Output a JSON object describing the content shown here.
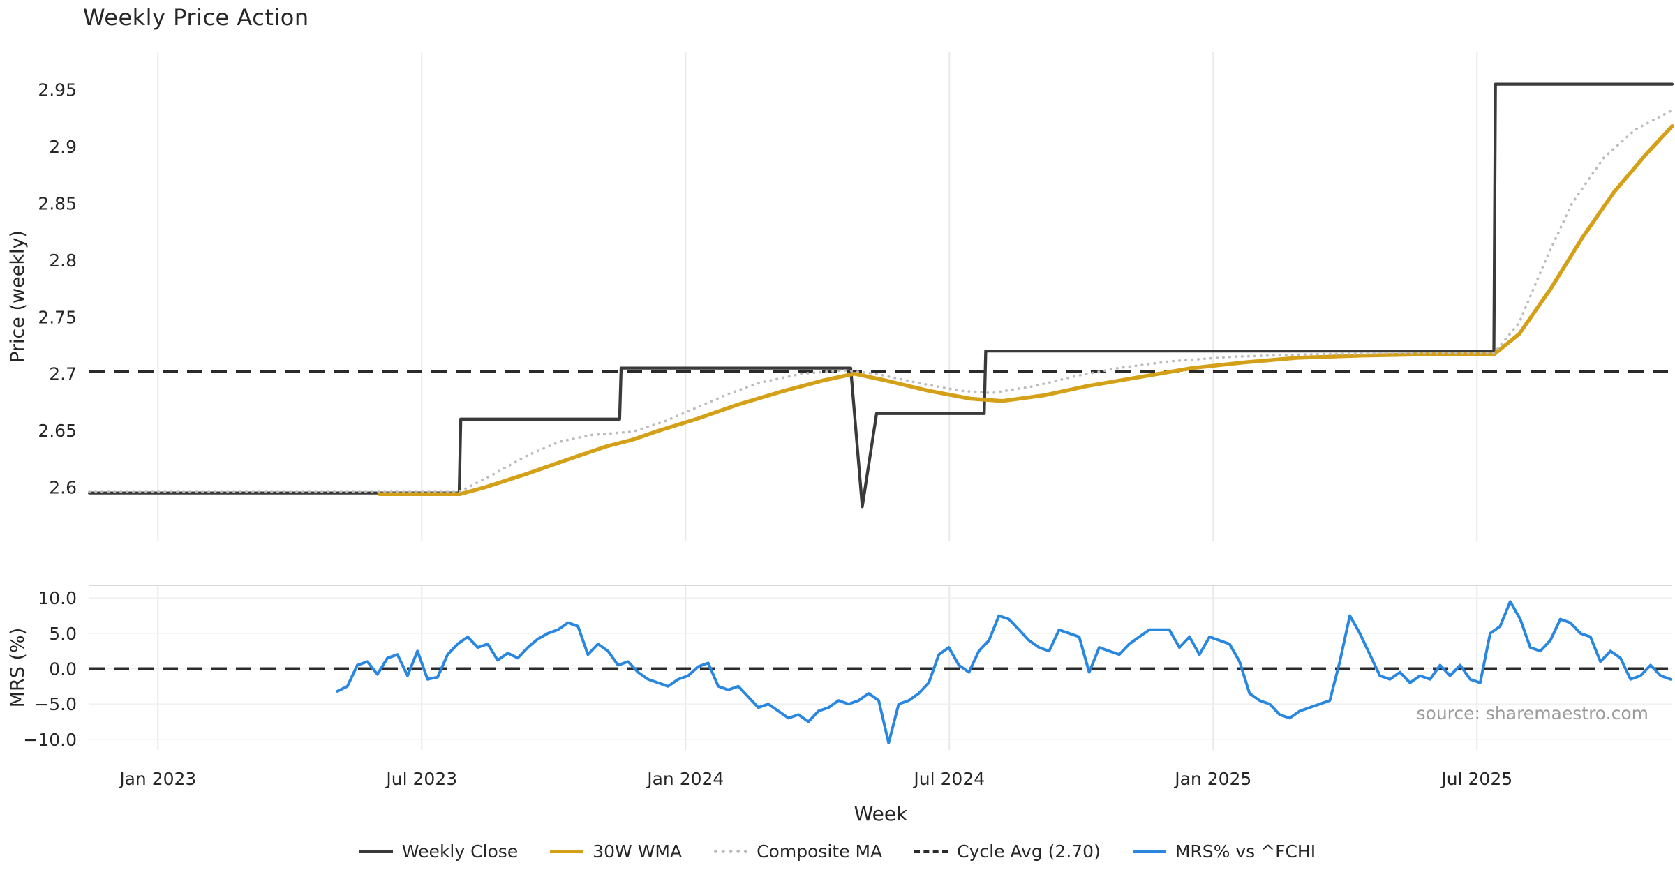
{
  "chart_data": {
    "type": "line",
    "title": "Weekly Price Action",
    "xlabel": "Week",
    "source_note": "source: sharemaestro.com",
    "xlim": [
      2022.87,
      2025.87
    ],
    "x_ticks": [
      {
        "t": 2023.0,
        "label": "Jan 2023"
      },
      {
        "t": 2023.5,
        "label": "Jul 2023"
      },
      {
        "t": 2024.0,
        "label": "Jan 2024"
      },
      {
        "t": 2024.5,
        "label": "Jul 2024"
      },
      {
        "t": 2025.0,
        "label": "Jan 2025"
      },
      {
        "t": 2025.5,
        "label": "Jul 2025"
      }
    ],
    "panels": [
      {
        "id": "price",
        "ylabel": "Price (weekly)",
        "ylim": [
          2.553,
          2.983
        ],
        "y_ticks": [
          {
            "v": 2.6,
            "label": "2.6"
          },
          {
            "v": 2.65,
            "label": "2.65"
          },
          {
            "v": 2.7,
            "label": "2.7"
          },
          {
            "v": 2.75,
            "label": "2.75"
          },
          {
            "v": 2.8,
            "label": "2.8"
          },
          {
            "v": 2.85,
            "label": "2.85"
          },
          {
            "v": 2.9,
            "label": "2.9"
          },
          {
            "v": 2.95,
            "label": "2.95"
          }
        ],
        "ref_lines": [
          {
            "name": "Cycle Avg (2.70)",
            "v": 2.702,
            "style": "dashed",
            "color": "#2b2b2b"
          }
        ],
        "series": [
          {
            "name": "Weekly Close",
            "color": "#3a3a3a",
            "style": "solid",
            "width": 4.3,
            "points": [
              [
                2022.87,
                2.595
              ],
              [
                2023.571,
                2.595
              ],
              [
                2023.574,
                2.66
              ],
              [
                2023.875,
                2.66
              ],
              [
                2023.878,
                2.705
              ],
              [
                2024.313,
                2.705
              ],
              [
                2024.335,
                2.583
              ],
              [
                2024.362,
                2.665
              ],
              [
                2024.566,
                2.665
              ],
              [
                2024.569,
                2.72
              ],
              [
                2025.532,
                2.72
              ],
              [
                2025.535,
                2.955
              ],
              [
                2025.87,
                2.955
              ]
            ]
          },
          {
            "name": "30W WMA",
            "color": "#d4a017",
            "style": "solid",
            "width": 5.5,
            "points": [
              [
                2023.42,
                2.594
              ],
              [
                2023.572,
                2.594
              ],
              [
                2023.62,
                2.6
              ],
              [
                2023.7,
                2.612
              ],
              [
                2023.78,
                2.625
              ],
              [
                2023.85,
                2.636
              ],
              [
                2023.9,
                2.642
              ],
              [
                2023.95,
                2.65
              ],
              [
                2024.02,
                2.66
              ],
              [
                2024.1,
                2.673
              ],
              [
                2024.18,
                2.684
              ],
              [
                2024.26,
                2.694
              ],
              [
                2024.32,
                2.7
              ],
              [
                2024.38,
                2.694
              ],
              [
                2024.46,
                2.685
              ],
              [
                2024.54,
                2.678
              ],
              [
                2024.6,
                2.676
              ],
              [
                2024.68,
                2.681
              ],
              [
                2024.76,
                2.689
              ],
              [
                2024.86,
                2.697
              ],
              [
                2024.96,
                2.705
              ],
              [
                2025.06,
                2.71
              ],
              [
                2025.16,
                2.714
              ],
              [
                2025.28,
                2.716
              ],
              [
                2025.4,
                2.717
              ],
              [
                2025.532,
                2.717
              ],
              [
                2025.58,
                2.735
              ],
              [
                2025.64,
                2.775
              ],
              [
                2025.7,
                2.82
              ],
              [
                2025.76,
                2.86
              ],
              [
                2025.82,
                2.893
              ],
              [
                2025.87,
                2.918
              ]
            ]
          },
          {
            "name": "Composite MA",
            "color": "#bcbcbc",
            "style": "dotted",
            "width": 3.6,
            "points": [
              [
                2022.87,
                2.596
              ],
              [
                2023.571,
                2.596
              ],
              [
                2023.63,
                2.61
              ],
              [
                2023.7,
                2.628
              ],
              [
                2023.76,
                2.64
              ],
              [
                2023.82,
                2.646
              ],
              [
                2023.9,
                2.649
              ],
              [
                2023.96,
                2.658
              ],
              [
                2024.02,
                2.67
              ],
              [
                2024.08,
                2.682
              ],
              [
                2024.14,
                2.692
              ],
              [
                2024.22,
                2.7
              ],
              [
                2024.3,
                2.703
              ],
              [
                2024.36,
                2.7
              ],
              [
                2024.44,
                2.692
              ],
              [
                2024.52,
                2.685
              ],
              [
                2024.58,
                2.683
              ],
              [
                2024.66,
                2.689
              ],
              [
                2024.74,
                2.698
              ],
              [
                2024.82,
                2.705
              ],
              [
                2024.92,
                2.711
              ],
              [
                2025.04,
                2.715
              ],
              [
                2025.18,
                2.717
              ],
              [
                2025.35,
                2.718
              ],
              [
                2025.532,
                2.718
              ],
              [
                2025.58,
                2.745
              ],
              [
                2025.63,
                2.8
              ],
              [
                2025.68,
                2.85
              ],
              [
                2025.74,
                2.89
              ],
              [
                2025.8,
                2.915
              ],
              [
                2025.87,
                2.932
              ]
            ]
          }
        ]
      },
      {
        "id": "mrs",
        "ylabel": "MRS (%)",
        "ylim": [
          -11.5,
          11.8
        ],
        "y_ticks": [
          {
            "v": -10,
            "label": "−10.0"
          },
          {
            "v": -5,
            "label": "−5.0"
          },
          {
            "v": 0,
            "label": "0.0"
          },
          {
            "v": 5,
            "label": "5.0"
          },
          {
            "v": 10,
            "label": "10.0"
          }
        ],
        "ref_lines": [
          {
            "name": "zero-line",
            "v": 0,
            "style": "dashed",
            "color": "#2b2b2b"
          }
        ],
        "series": [
          {
            "name": "MRS% vs ^FCHI",
            "color": "#2a87e0",
            "style": "solid",
            "width": 4,
            "start": 2023.34,
            "step": 0.019,
            "values": [
              -3.2,
              -2.5,
              0.5,
              1.0,
              -0.8,
              1.5,
              2.0,
              -1.0,
              2.5,
              -1.5,
              -1.2,
              2.0,
              3.5,
              4.5,
              3.0,
              3.5,
              1.2,
              2.2,
              1.5,
              3.0,
              4.2,
              5.0,
              5.5,
              6.5,
              6.0,
              2.0,
              3.5,
              2.5,
              0.5,
              1.0,
              -0.5,
              -1.5,
              -2.0,
              -2.5,
              -1.5,
              -1.0,
              0.3,
              0.8,
              -2.5,
              -3.0,
              -2.5,
              -4.0,
              -5.5,
              -5.0,
              -6.0,
              -7.0,
              -6.5,
              -7.5,
              -6.0,
              -5.5,
              -4.5,
              -5.0,
              -4.5,
              -3.5,
              -4.5,
              -10.5,
              -5.0,
              -4.5,
              -3.5,
              -2.0,
              2.0,
              3.0,
              0.5,
              -0.5,
              2.5,
              4.0,
              7.5,
              7.0,
              5.5,
              4.0,
              3.0,
              2.5,
              5.5,
              5.0,
              4.5,
              -0.5,
              3.0,
              2.5,
              2.0,
              3.5,
              4.5,
              5.5,
              5.5,
              5.5,
              3.0,
              4.5,
              2.0,
              4.5,
              4.0,
              3.5,
              1.0,
              -3.5,
              -4.5,
              -5.0,
              -6.5,
              -7.0,
              -6.0,
              -5.5,
              -5.0,
              -4.5,
              1.0,
              7.5,
              5.0,
              2.0,
              -1.0,
              -1.5,
              -0.5,
              -2.0,
              -1.0,
              -1.5,
              0.5,
              -1.0,
              0.5,
              -1.5,
              -2.0,
              5.0,
              6.0,
              9.5,
              7.0,
              3.0,
              2.5,
              4.0,
              7.0,
              6.5,
              5.0,
              4.5,
              1.0,
              2.5,
              1.5,
              -1.5,
              -1.0,
              0.5,
              -1.0,
              -1.5
            ]
          }
        ]
      }
    ],
    "legend": [
      {
        "label": "Weekly Close",
        "color": "#3a3a3a",
        "style": "solid"
      },
      {
        "label": "30W WMA",
        "color": "#d4a017",
        "style": "solid"
      },
      {
        "label": "Composite MA",
        "color": "#bcbcbc",
        "style": "dotted"
      },
      {
        "label": "Cycle Avg (2.70)",
        "color": "#2b2b2b",
        "style": "dashed"
      },
      {
        "label": "MRS% vs ^FCHI",
        "color": "#2a87e0",
        "style": "solid"
      }
    ],
    "colors": {
      "grid": "#e9e9e9",
      "text": "#262626",
      "source_text": "#9b9b9b"
    }
  }
}
